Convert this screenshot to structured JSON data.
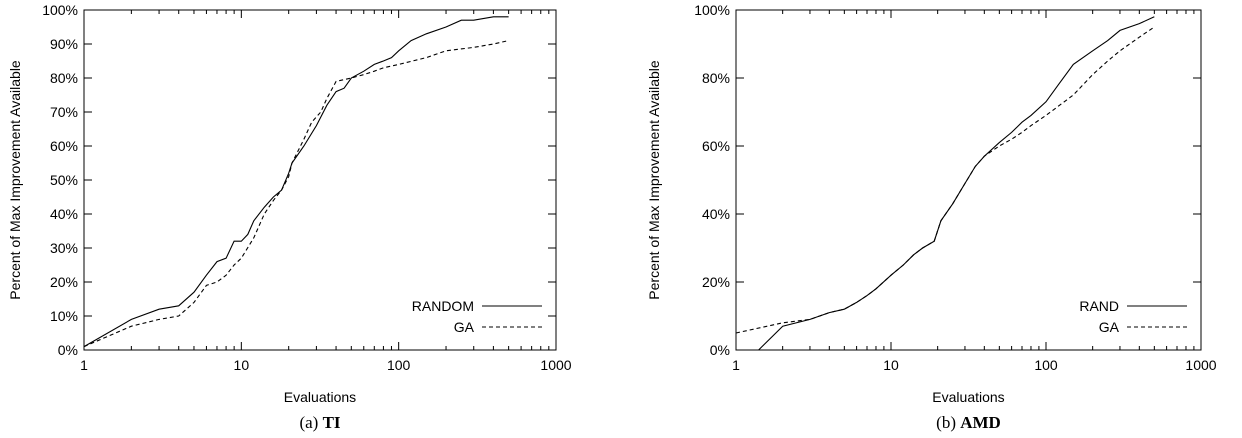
{
  "chart_data": [
    {
      "type": "line",
      "caption_prefix": "(a) ",
      "caption_bold": "TI",
      "xlabel": "Evaluations",
      "ylabel": "Percent of Max Improvement Available",
      "xscale": "log",
      "xlim": [
        1,
        1000
      ],
      "ylim": [
        0,
        100
      ],
      "x_ticks": [
        1,
        10,
        100,
        1000
      ],
      "x_tick_labels": [
        "1",
        "10",
        "100",
        "1000"
      ],
      "y_ticks": [
        0,
        10,
        20,
        30,
        40,
        50,
        60,
        70,
        80,
        90,
        100
      ],
      "y_tick_labels": [
        "0%",
        "10%",
        "20%",
        "30%",
        "40%",
        "50%",
        "60%",
        "70%",
        "80%",
        "90%",
        "100%"
      ],
      "legend_position": "bottom-right",
      "grid": false,
      "series": [
        {
          "name": "RANDOM",
          "style": "solid",
          "points": [
            [
              1,
              1
            ],
            [
              2,
              9
            ],
            [
              3,
              12
            ],
            [
              4,
              13
            ],
            [
              5,
              17
            ],
            [
              6,
              22
            ],
            [
              7,
              26
            ],
            [
              8,
              27
            ],
            [
              9,
              32
            ],
            [
              10,
              32
            ],
            [
              11,
              34
            ],
            [
              12,
              38
            ],
            [
              14,
              42
            ],
            [
              16,
              45
            ],
            [
              18,
              47
            ],
            [
              20,
              52
            ],
            [
              21,
              55
            ],
            [
              25,
              60
            ],
            [
              30,
              66
            ],
            [
              35,
              72
            ],
            [
              40,
              76
            ],
            [
              45,
              77
            ],
            [
              50,
              80
            ],
            [
              60,
              82
            ],
            [
              70,
              84
            ],
            [
              80,
              85
            ],
            [
              90,
              86
            ],
            [
              100,
              88
            ],
            [
              120,
              91
            ],
            [
              150,
              93
            ],
            [
              200,
              95
            ],
            [
              250,
              97
            ],
            [
              300,
              97
            ],
            [
              400,
              98
            ],
            [
              500,
              98
            ]
          ]
        },
        {
          "name": "GA",
          "style": "dashed",
          "points": [
            [
              1,
              1
            ],
            [
              2,
              7
            ],
            [
              3,
              9
            ],
            [
              4,
              10
            ],
            [
              5,
              14
            ],
            [
              6,
              19
            ],
            [
              7,
              20
            ],
            [
              8,
              22
            ],
            [
              9,
              25
            ],
            [
              10,
              27
            ],
            [
              12,
              33
            ],
            [
              14,
              40
            ],
            [
              16,
              44
            ],
            [
              18,
              47
            ],
            [
              20,
              51
            ],
            [
              21,
              55
            ],
            [
              25,
              62
            ],
            [
              28,
              67
            ],
            [
              32,
              70
            ],
            [
              35,
              74
            ],
            [
              40,
              79
            ],
            [
              50,
              80
            ],
            [
              60,
              81
            ],
            [
              70,
              82
            ],
            [
              80,
              83
            ],
            [
              100,
              84
            ],
            [
              150,
              86
            ],
            [
              200,
              88
            ],
            [
              300,
              89
            ],
            [
              400,
              90
            ],
            [
              500,
              91
            ]
          ]
        }
      ]
    },
    {
      "type": "line",
      "caption_prefix": "(b) ",
      "caption_bold": "AMD",
      "xlabel": "Evaluations",
      "ylabel": "Percent of Max Improvement Available",
      "xscale": "log",
      "xlim": [
        1,
        1000
      ],
      "ylim": [
        0,
        100
      ],
      "x_ticks": [
        1,
        10,
        100,
        1000
      ],
      "x_tick_labels": [
        "1",
        "10",
        "100",
        "1000"
      ],
      "y_ticks": [
        0,
        20,
        40,
        60,
        80,
        100
      ],
      "y_tick_labels": [
        "0%",
        "20%",
        "40%",
        "60%",
        "80%",
        "100%"
      ],
      "legend_position": "bottom-right",
      "grid": false,
      "series": [
        {
          "name": "RAND",
          "style": "solid",
          "points": [
            [
              1.4,
              0
            ],
            [
              2,
              7
            ],
            [
              3,
              9
            ],
            [
              4,
              11
            ],
            [
              5,
              12
            ],
            [
              6,
              14
            ],
            [
              7,
              16
            ],
            [
              8,
              18
            ],
            [
              10,
              22
            ],
            [
              12,
              25
            ],
            [
              14,
              28
            ],
            [
              16,
              30
            ],
            [
              19,
              32
            ],
            [
              21,
              38
            ],
            [
              25,
              43
            ],
            [
              30,
              49
            ],
            [
              35,
              54
            ],
            [
              40,
              57
            ],
            [
              50,
              61
            ],
            [
              60,
              64
            ],
            [
              70,
              67
            ],
            [
              80,
              69
            ],
            [
              100,
              73
            ],
            [
              120,
              78
            ],
            [
              150,
              84
            ],
            [
              200,
              88
            ],
            [
              250,
              91
            ],
            [
              300,
              94
            ],
            [
              400,
              96
            ],
            [
              500,
              98
            ]
          ]
        },
        {
          "name": "GA",
          "style": "dashed",
          "points": [
            [
              1,
              5
            ],
            [
              2,
              8
            ],
            [
              3,
              9
            ],
            [
              4,
              11
            ],
            [
              5,
              12
            ],
            [
              6,
              14
            ],
            [
              7,
              16
            ],
            [
              8,
              18
            ],
            [
              10,
              22
            ],
            [
              12,
              25
            ],
            [
              14,
              28
            ],
            [
              16,
              30
            ],
            [
              19,
              32
            ],
            [
              21,
              38
            ],
            [
              25,
              43
            ],
            [
              30,
              49
            ],
            [
              35,
              54
            ],
            [
              40,
              57
            ],
            [
              50,
              60
            ],
            [
              60,
              62
            ],
            [
              70,
              64
            ],
            [
              80,
              66
            ],
            [
              100,
              69
            ],
            [
              150,
              75
            ],
            [
              200,
              81
            ],
            [
              250,
              85
            ],
            [
              300,
              88
            ],
            [
              400,
              92
            ],
            [
              500,
              95
            ]
          ]
        }
      ]
    }
  ]
}
